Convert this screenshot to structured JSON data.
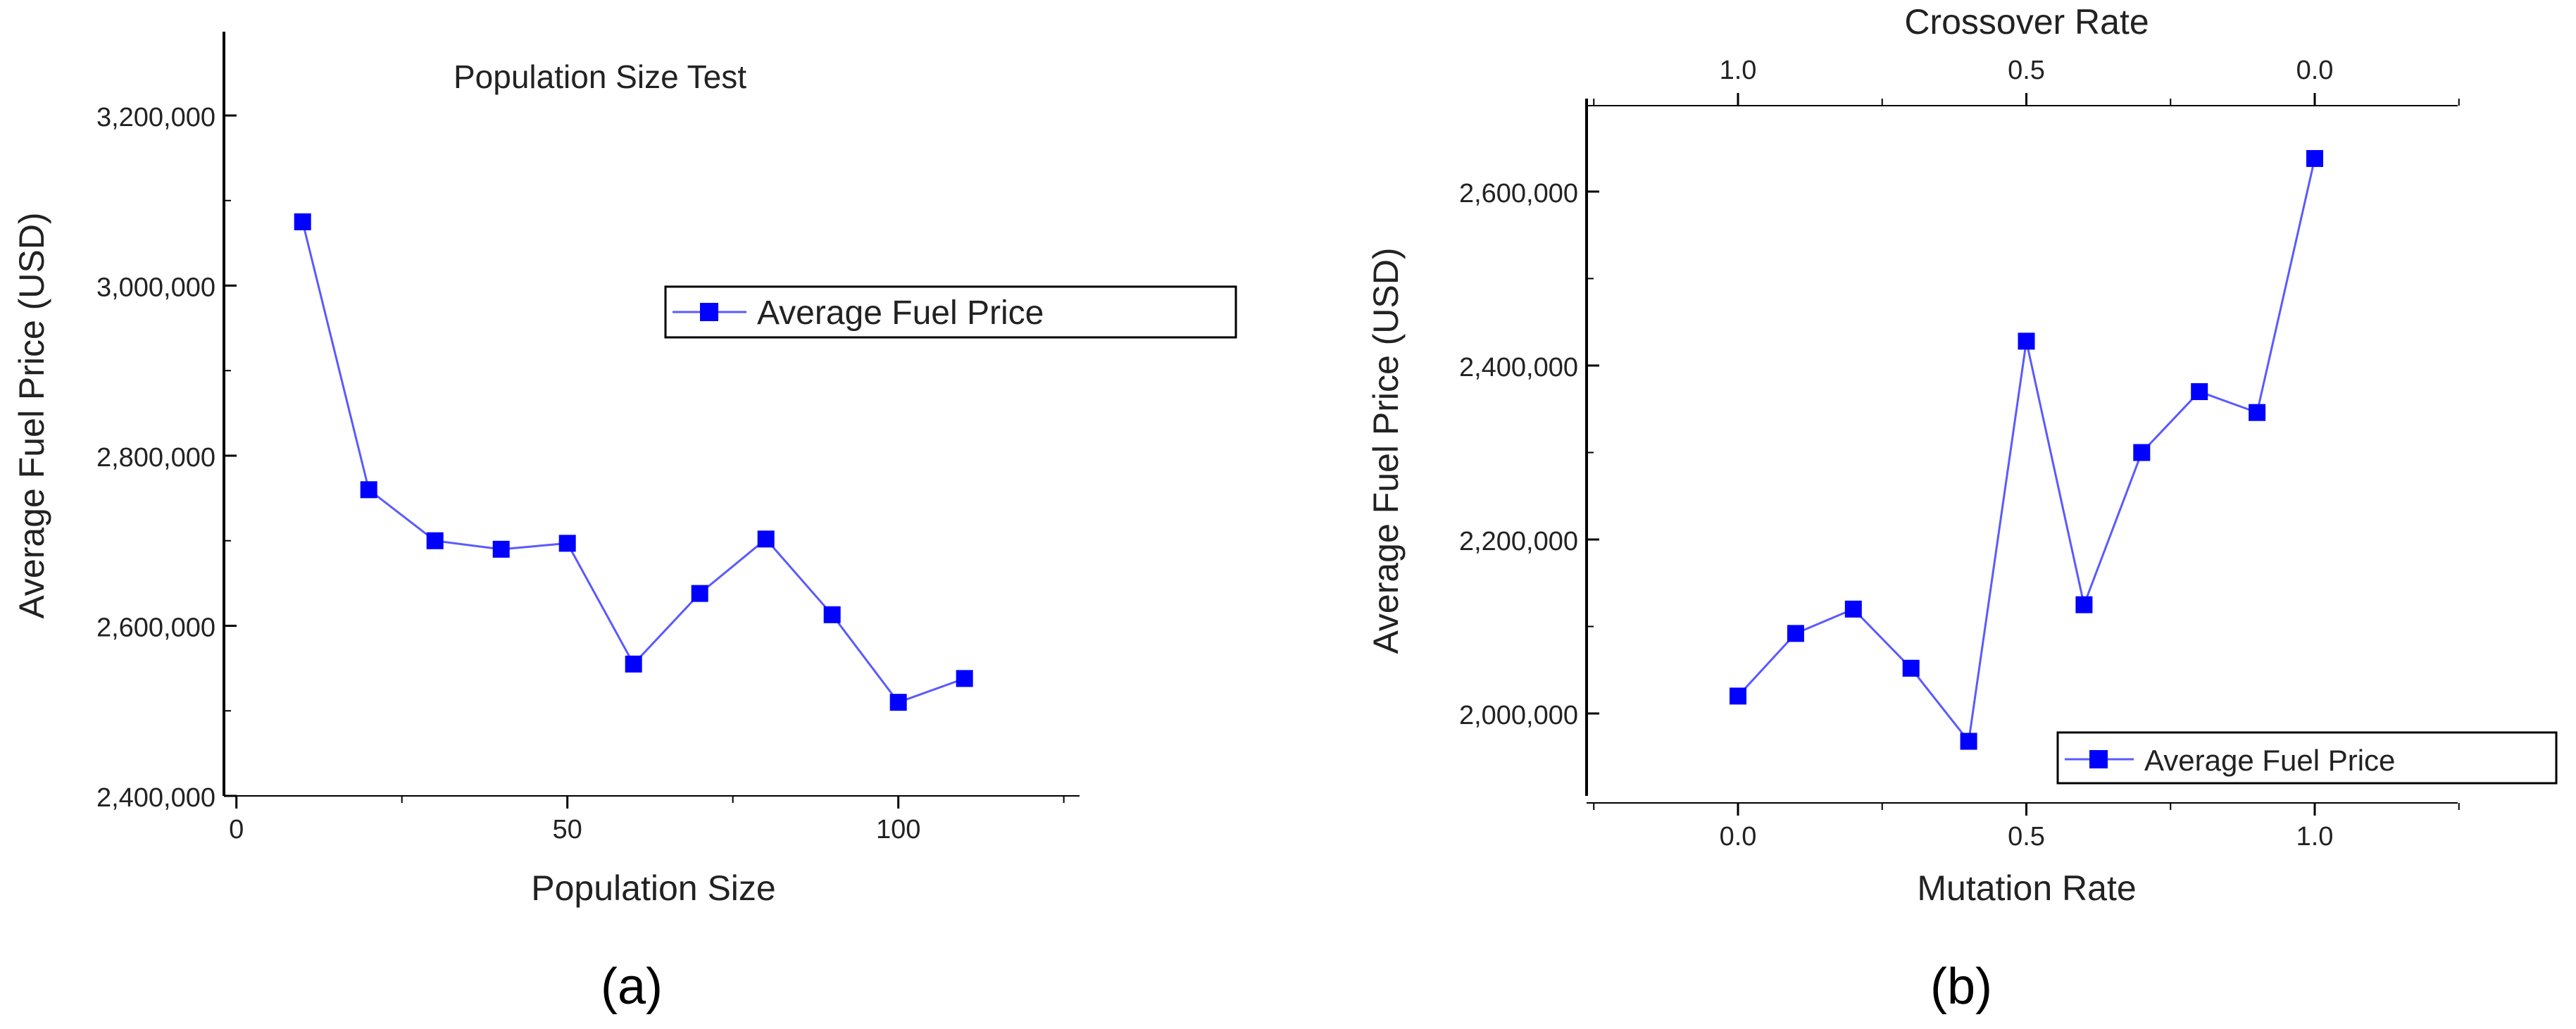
{
  "chart_data": [
    {
      "type": "line",
      "panel_label": "(a)",
      "title": "Population Size Test",
      "xlabel": "Population Size",
      "ylabel": "Average Fuel Price (USD)",
      "xlim": [
        -2,
        125
      ],
      "ylim": [
        2400000,
        3300000
      ],
      "xticks": [
        0,
        50,
        100
      ],
      "xtick_labels": [
        "0",
        "50",
        "100"
      ],
      "yticks": [
        2400000,
        2600000,
        2800000,
        3000000,
        3200000
      ],
      "ytick_labels": [
        "2,400,000",
        "2,600,000",
        "2,800,000",
        "3,000,000",
        "3,200,000"
      ],
      "legend_position": "upper-right",
      "color": "#0000ff",
      "series": [
        {
          "name": "Average Fuel Price",
          "x": [
            10,
            20,
            30,
            40,
            50,
            60,
            70,
            80,
            90,
            100,
            110
          ],
          "y": [
            3075000,
            2760000,
            2700000,
            2690000,
            2697000,
            2555000,
            2638000,
            2702000,
            2613000,
            2510000,
            2538000
          ]
        }
      ]
    },
    {
      "type": "line",
      "panel_label": "(b)",
      "title": "",
      "xlabel": "Mutation Rate",
      "x2label": "Crossover Rate",
      "ylabel": "Average Fuel Price (USD)",
      "xlim": [
        -0.25,
        1.25
      ],
      "ylim": [
        1900000,
        2700000
      ],
      "xticks": [
        0.0,
        0.5,
        1.0
      ],
      "xtick_labels": [
        "0.0",
        "0.5",
        "1.0"
      ],
      "x2tick_labels": [
        "1.0",
        "0.5",
        "0.0"
      ],
      "yticks": [
        2000000,
        2200000,
        2400000,
        2600000
      ],
      "ytick_labels": [
        "2,000,000",
        "2,200,000",
        "2,400,000",
        "2,600,000"
      ],
      "legend_position": "lower-right",
      "color": "#0000ff",
      "series": [
        {
          "name": "Average Fuel Price",
          "x": [
            0.0,
            0.1,
            0.2,
            0.3,
            0.4,
            0.5,
            0.6,
            0.7,
            0.8,
            0.9,
            1.0
          ],
          "y": [
            2020000,
            2092000,
            2120000,
            2052000,
            1968000,
            2428000,
            2125000,
            2300000,
            2370000,
            2346000,
            2638000
          ]
        }
      ]
    }
  ]
}
